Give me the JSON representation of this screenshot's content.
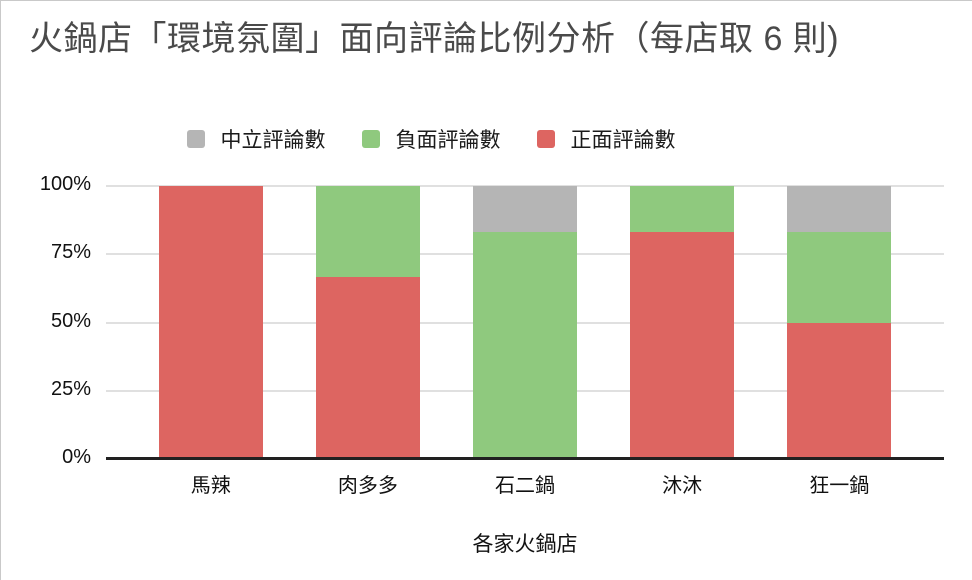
{
  "title": "火鍋店「環境氛圍」面向評論比例分析（每店取 6 則)",
  "colors": {
    "positive": "#DD6561",
    "negative": "#8FC97E",
    "neutral": "#B5B5B5",
    "gridline": "#E0E0E0",
    "baseline": "#212121",
    "title_text": "#4A4A4A",
    "axis_text": "#111111"
  },
  "legend": [
    {
      "key": "neutral",
      "label": "中立評論數",
      "color": "#B5B5B5"
    },
    {
      "key": "negative",
      "label": "負面評論數",
      "color": "#8FC97E"
    },
    {
      "key": "positive",
      "label": "正面評論數",
      "color": "#DD6561"
    }
  ],
  "chart_data": {
    "type": "bar",
    "stacked": true,
    "percent_stacked": true,
    "title": "火鍋店「環境氛圍」面向評論比例分析（每店取 6 則)",
    "categories": [
      "馬辣",
      "肉多多",
      "石二鍋",
      "沐沐",
      "狂一鍋"
    ],
    "series": [
      {
        "key": "positive",
        "name": "正面評論數",
        "color": "#DD6561",
        "values_pct": [
          100,
          66.7,
          0,
          83.3,
          50
        ],
        "counts_of_6": [
          6,
          4,
          0,
          5,
          3
        ]
      },
      {
        "key": "negative",
        "name": "負面評論數",
        "color": "#8FC97E",
        "values_pct": [
          0,
          33.3,
          83.3,
          16.7,
          33.3
        ],
        "counts_of_6": [
          0,
          2,
          5,
          1,
          2
        ]
      },
      {
        "key": "neutral",
        "name": "中立評論數",
        "color": "#B5B5B5",
        "values_pct": [
          0,
          0,
          16.7,
          0,
          16.7
        ],
        "counts_of_6": [
          0,
          0,
          1,
          0,
          1
        ]
      }
    ],
    "xlabel": "各家火鍋店",
    "ylabel": "",
    "ylim": [
      0,
      100
    ],
    "y_ticks_pct": [
      0,
      25,
      50,
      75,
      100
    ],
    "y_tick_labels": [
      "0%",
      "25%",
      "50%",
      "75%",
      "100%"
    ],
    "legend_position": "top",
    "grid": "horizontal"
  }
}
